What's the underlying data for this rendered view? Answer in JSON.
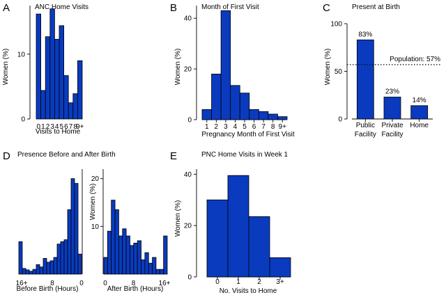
{
  "chart_data": [
    {
      "panel": "A",
      "type": "bar",
      "title": "ANC Home Visits",
      "xlabel": "Visits to Home",
      "ylabel": "Women (%)",
      "categories": [
        "0",
        "1",
        "2",
        "3",
        "4",
        "5",
        "6",
        "7",
        "8",
        "9+"
      ],
      "values": [
        16.2,
        4.4,
        12.7,
        17.0,
        12.3,
        14.4,
        6.7,
        2.5,
        3.9,
        9.0
      ],
      "yticks": [
        0,
        10
      ],
      "ylim": [
        0,
        17.5
      ]
    },
    {
      "panel": "B",
      "type": "bar",
      "title": "Month of First Visit",
      "xlabel": "Pregnancy Month of First Visit",
      "ylabel": "Women (%)",
      "categories": [
        "1",
        "2",
        "3",
        "4",
        "5",
        "6",
        "7",
        "8",
        "9+"
      ],
      "values": [
        4.0,
        18.0,
        43.0,
        13.5,
        10.5,
        4.0,
        3.2,
        2.2,
        1.2
      ],
      "yticks": [
        0,
        20,
        40
      ],
      "ylim": [
        0,
        45
      ]
    },
    {
      "panel": "C",
      "type": "bar",
      "title": "Present at Birth",
      "ylabel": "Women (%)",
      "categories": [
        "Public Facility",
        "Private Facility",
        "Home"
      ],
      "values": [
        83,
        23,
        14
      ],
      "data_labels": [
        "83%",
        "23%",
        "14%"
      ],
      "reference_line": {
        "value": 57,
        "label": "Population: 57%"
      },
      "yticks": [
        0,
        50,
        100
      ],
      "ylim": [
        0,
        100
      ]
    },
    {
      "panel": "D",
      "type": "bar",
      "title": "Presence Before and After Birth",
      "ylabel": "Women (%)",
      "yticks": [
        10,
        20
      ],
      "ylim": [
        0,
        22
      ],
      "subplots": [
        {
          "xlabel": "Before Birth (Hours)",
          "xticks": [
            "16+",
            "8",
            "0"
          ],
          "values": [
            6.8,
            1.2,
            0.9,
            0.6,
            1.0,
            2.0,
            1.5,
            3.3,
            2.5,
            2.8,
            3.5,
            6.3,
            6.8,
            7.2,
            13.5,
            20.0,
            19.0,
            4.2
          ]
        },
        {
          "xlabel": "After Birth (Hours)",
          "xticks": [
            "0",
            "8",
            "16+"
          ],
          "values": [
            3.5,
            9.0,
            15.5,
            13.5,
            8.0,
            9.5,
            8.0,
            6.0,
            6.5,
            7.0,
            3.0,
            4.5,
            2.3,
            3.5,
            1.0,
            1.0,
            8.0
          ]
        }
      ]
    },
    {
      "panel": "E",
      "type": "bar",
      "title": "PNC Home Visits in Week 1",
      "xlabel": "No. Visits to Home",
      "ylabel": "Women (%)",
      "categories": [
        "0",
        "1",
        "2",
        "3+"
      ],
      "values": [
        30,
        39.5,
        23.5,
        7.5
      ],
      "yticks": [
        0,
        20,
        40
      ],
      "ylim": [
        0,
        42
      ]
    }
  ]
}
